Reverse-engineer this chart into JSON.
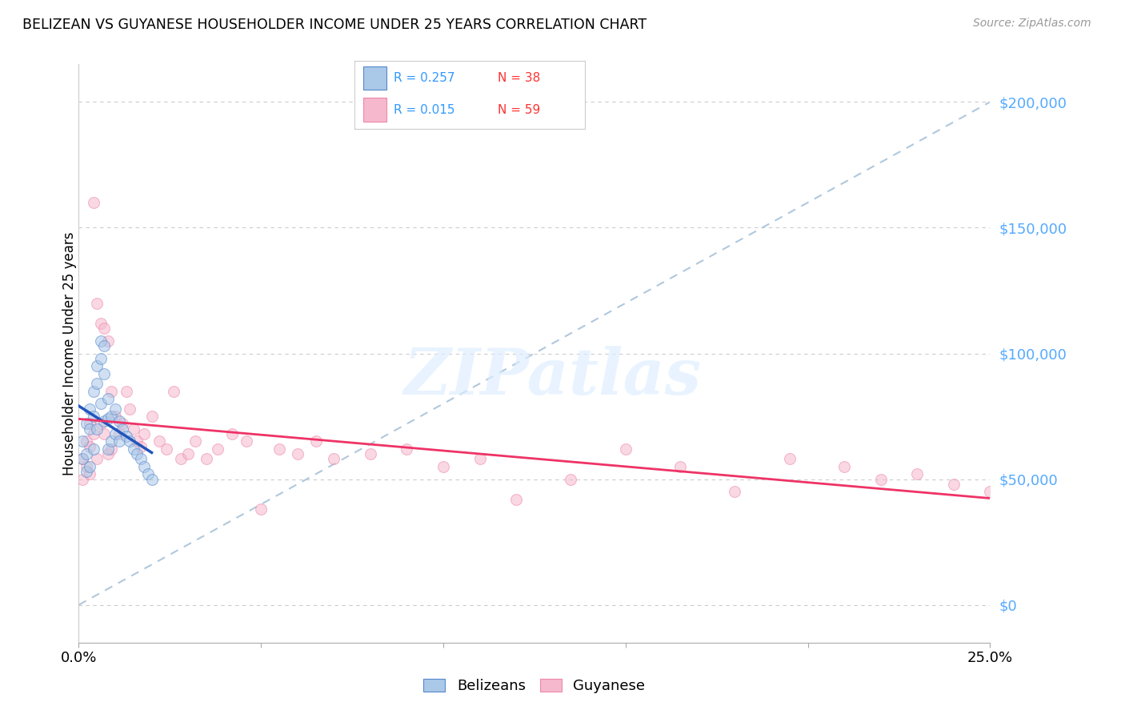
{
  "title": "BELIZEAN VS GUYANESE HOUSEHOLDER INCOME UNDER 25 YEARS CORRELATION CHART",
  "source": "Source: ZipAtlas.com",
  "ylabel": "Householder Income Under 25 years",
  "xmin": 0.0,
  "xmax": 0.25,
  "ymin": -15000,
  "ymax": 215000,
  "yticks": [
    0,
    50000,
    100000,
    150000,
    200000
  ],
  "ytick_labels": [
    "$0",
    "$50,000",
    "$100,000",
    "$150,000",
    "$200,000"
  ],
  "belizean_color": "#aac8e8",
  "belizean_edge": "#5588cc",
  "guyanese_color": "#f5b8cc",
  "guyanese_edge": "#ee88aa",
  "belizean_line_color": "#2255bb",
  "guyanese_line_color": "#ee3366",
  "diag_line_color": "#b0c8dd",
  "R_belizean": 0.257,
  "N_belizean": 38,
  "R_guyanese": 0.015,
  "N_guyanese": 59,
  "legend_label_belizeans": "Belizeans",
  "legend_label_guyanese": "Guyanese",
  "marker_size": 100,
  "alpha": 0.55,
  "watermark": "ZIPatlas",
  "belizean_x": [
    0.001,
    0.001,
    0.002,
    0.002,
    0.002,
    0.003,
    0.003,
    0.003,
    0.004,
    0.004,
    0.004,
    0.005,
    0.005,
    0.005,
    0.006,
    0.006,
    0.006,
    0.007,
    0.007,
    0.007,
    0.008,
    0.008,
    0.008,
    0.009,
    0.009,
    0.01,
    0.01,
    0.011,
    0.011,
    0.012,
    0.013,
    0.014,
    0.015,
    0.016,
    0.017,
    0.018,
    0.019,
    0.02
  ],
  "belizean_y": [
    65000,
    58000,
    72000,
    60000,
    53000,
    78000,
    70000,
    55000,
    85000,
    75000,
    62000,
    95000,
    88000,
    70000,
    105000,
    98000,
    80000,
    103000,
    92000,
    73000,
    82000,
    74000,
    62000,
    75000,
    65000,
    78000,
    68000,
    73000,
    65000,
    70000,
    67000,
    65000,
    62000,
    60000,
    58000,
    55000,
    52000,
    50000
  ],
  "guyanese_x": [
    0.001,
    0.001,
    0.002,
    0.002,
    0.003,
    0.003,
    0.003,
    0.004,
    0.004,
    0.005,
    0.005,
    0.006,
    0.006,
    0.007,
    0.007,
    0.008,
    0.008,
    0.009,
    0.009,
    0.01,
    0.011,
    0.012,
    0.013,
    0.014,
    0.015,
    0.016,
    0.017,
    0.018,
    0.02,
    0.022,
    0.024,
    0.026,
    0.028,
    0.03,
    0.032,
    0.035,
    0.038,
    0.042,
    0.046,
    0.05,
    0.055,
    0.06,
    0.065,
    0.07,
    0.08,
    0.09,
    0.1,
    0.11,
    0.12,
    0.135,
    0.15,
    0.165,
    0.18,
    0.195,
    0.21,
    0.22,
    0.23,
    0.24,
    0.25
  ],
  "guyanese_y": [
    58000,
    50000,
    65000,
    55000,
    72000,
    63000,
    52000,
    160000,
    68000,
    120000,
    58000,
    112000,
    72000,
    110000,
    68000,
    105000,
    60000,
    85000,
    62000,
    75000,
    68000,
    72000,
    85000,
    78000,
    70000,
    65000,
    63000,
    68000,
    75000,
    65000,
    62000,
    85000,
    58000,
    60000,
    65000,
    58000,
    62000,
    68000,
    65000,
    38000,
    62000,
    60000,
    65000,
    58000,
    60000,
    62000,
    55000,
    58000,
    42000,
    50000,
    62000,
    55000,
    45000,
    58000,
    55000,
    50000,
    52000,
    48000,
    45000
  ]
}
